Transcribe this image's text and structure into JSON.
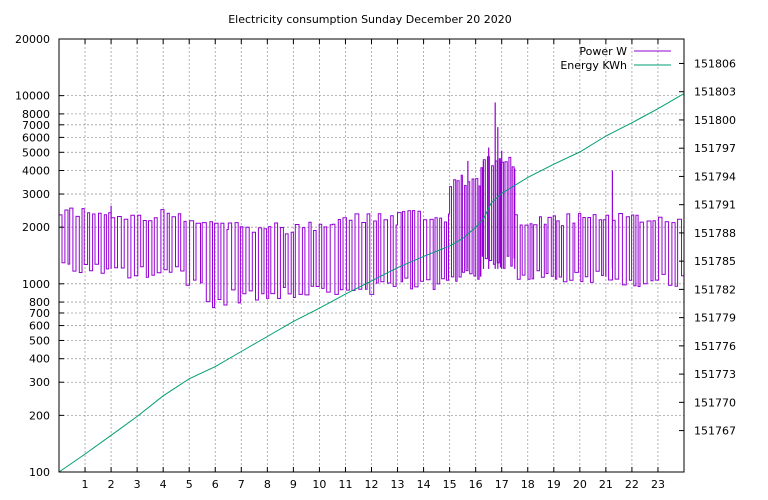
{
  "chart_data": {
    "type": "line",
    "title": "Electricity consumption Sunday December 20 2020",
    "xlabel": "",
    "ylabel": "",
    "xlim": [
      0,
      24
    ],
    "ylim": [
      100,
      20000
    ],
    "y_scale": "log",
    "y2lim": [
      151762.6,
      151808.6
    ],
    "grid": true,
    "legend_position": "top-right",
    "x_ticks": [
      1,
      2,
      3,
      4,
      5,
      6,
      7,
      8,
      9,
      10,
      11,
      12,
      13,
      14,
      15,
      16,
      17,
      18,
      19,
      20,
      21,
      22,
      23
    ],
    "y_ticks": [
      100,
      200,
      300,
      400,
      500,
      600,
      700,
      800,
      1000,
      2000,
      3000,
      4000,
      5000,
      6000,
      7000,
      8000,
      10000,
      20000
    ],
    "y2_ticks": [
      151767,
      151770,
      151773,
      151776,
      151779,
      151782,
      151785,
      151788,
      151791,
      151794,
      151797,
      151800,
      151803,
      151806
    ],
    "series": [
      {
        "name": "Power W",
        "axis": "y",
        "color": "#9400d3",
        "style": "steps",
        "blocks": [
          {
            "x0": 0.0,
            "x1": 2.0,
            "low": 1200,
            "high": 2400,
            "period": 0.15
          },
          {
            "x0": 2.0,
            "x1": 4.8,
            "low": 1150,
            "high": 2350,
            "period": 0.17
          },
          {
            "x0": 4.8,
            "x1": 5.5,
            "low": 1000,
            "high": 2100,
            "period": 0.18
          },
          {
            "x0": 5.5,
            "x1": 6.5,
            "low": 780,
            "high": 2000,
            "period": 0.2
          },
          {
            "x0": 6.5,
            "x1": 8.5,
            "low": 860,
            "high": 2000,
            "period": 0.16
          },
          {
            "x0": 8.5,
            "x1": 10.5,
            "low": 900,
            "high": 2000,
            "period": 0.17
          },
          {
            "x0": 10.5,
            "x1": 13.0,
            "low": 950,
            "high": 2200,
            "period": 0.16
          },
          {
            "x0": 13.0,
            "x1": 15.0,
            "low": 1000,
            "high": 2300,
            "period": 0.15
          },
          {
            "x0": 15.0,
            "x1": 16.2,
            "low": 1100,
            "high": 3500,
            "period": 0.1
          },
          {
            "x0": 16.2,
            "x1": 17.5,
            "low": 1300,
            "high": 4500,
            "period": 0.09
          },
          {
            "x0": 17.5,
            "x1": 21.0,
            "low": 1100,
            "high": 2200,
            "period": 0.15
          },
          {
            "x0": 21.0,
            "x1": 24.0,
            "low": 1050,
            "high": 2200,
            "period": 0.16
          }
        ],
        "spikes": [
          {
            "x": 2.0,
            "y": 2600
          },
          {
            "x": 15.7,
            "y": 4500
          },
          {
            "x": 16.3,
            "y": 4500
          },
          {
            "x": 16.5,
            "y": 5300
          },
          {
            "x": 16.75,
            "y": 9200
          },
          {
            "x": 16.85,
            "y": 6800
          },
          {
            "x": 17.0,
            "y": 5100
          },
          {
            "x": 17.5,
            "y": 4100
          },
          {
            "x": 21.25,
            "y": 4000
          }
        ]
      },
      {
        "name": "Energy KWh",
        "axis": "y2",
        "color": "#009e73",
        "style": "lines",
        "x": [
          0,
          1,
          2,
          3,
          4,
          5,
          6,
          7,
          8,
          9,
          10,
          11,
          12,
          13,
          14,
          15,
          15.5,
          16,
          16.3,
          16.6,
          17,
          18,
          19,
          20,
          21,
          22,
          23,
          24
        ],
        "y": [
          151762.6,
          151764.5,
          151766.5,
          151768.5,
          151770.7,
          151772.5,
          151773.8,
          151775.4,
          151777.0,
          151778.6,
          151780.0,
          151781.5,
          151782.9,
          151784.3,
          151785.5,
          151786.6,
          151787.4,
          151788.6,
          151789.5,
          151791.2,
          151792.2,
          151793.9,
          151795.3,
          151796.6,
          151798.3,
          151799.7,
          151801.2,
          151802.8
        ]
      }
    ]
  }
}
